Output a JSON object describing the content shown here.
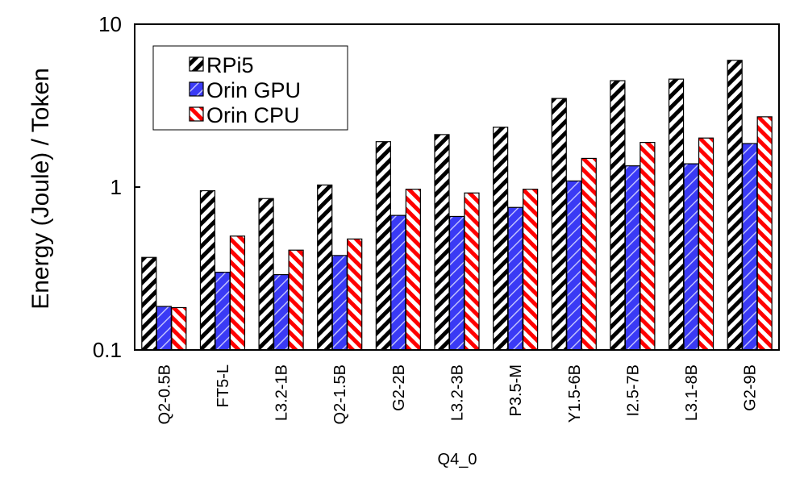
{
  "chart_data": {
    "type": "bar",
    "title": "",
    "xlabel": "Q4_0",
    "ylabel": "Energy (Joule) / Token",
    "yscale": "log",
    "ylim": [
      0.1,
      10
    ],
    "yticks": [
      {
        "value": 0.1,
        "label": "0.1"
      },
      {
        "value": 1,
        "label": "1"
      },
      {
        "value": 10,
        "label": "10"
      }
    ],
    "legend_position": "top-left",
    "categories": [
      "Q2-0.5B",
      "FT5-L",
      "L3.2-1B",
      "Q2-1.5B",
      "G2-2B",
      "L3.2-3B",
      "P3.5-M",
      "Y1.5-6B",
      "I2.5-7B",
      "L3.1-8B",
      "G2-9B"
    ],
    "series": [
      {
        "name": "RPi5",
        "color": "#000000",
        "values": [
          0.37,
          0.95,
          0.85,
          1.03,
          1.9,
          2.1,
          2.33,
          3.5,
          4.5,
          4.6,
          6.0
        ]
      },
      {
        "name": "Orin GPU",
        "color": "#3333ff",
        "values": [
          0.185,
          0.3,
          0.29,
          0.38,
          0.67,
          0.66,
          0.75,
          1.09,
          1.35,
          1.39,
          1.85
        ]
      },
      {
        "name": "Orin CPU",
        "color": "#ff0000",
        "values": [
          0.182,
          0.5,
          0.41,
          0.48,
          0.97,
          0.92,
          0.97,
          1.5,
          1.88,
          2.0,
          2.7
        ]
      }
    ]
  }
}
